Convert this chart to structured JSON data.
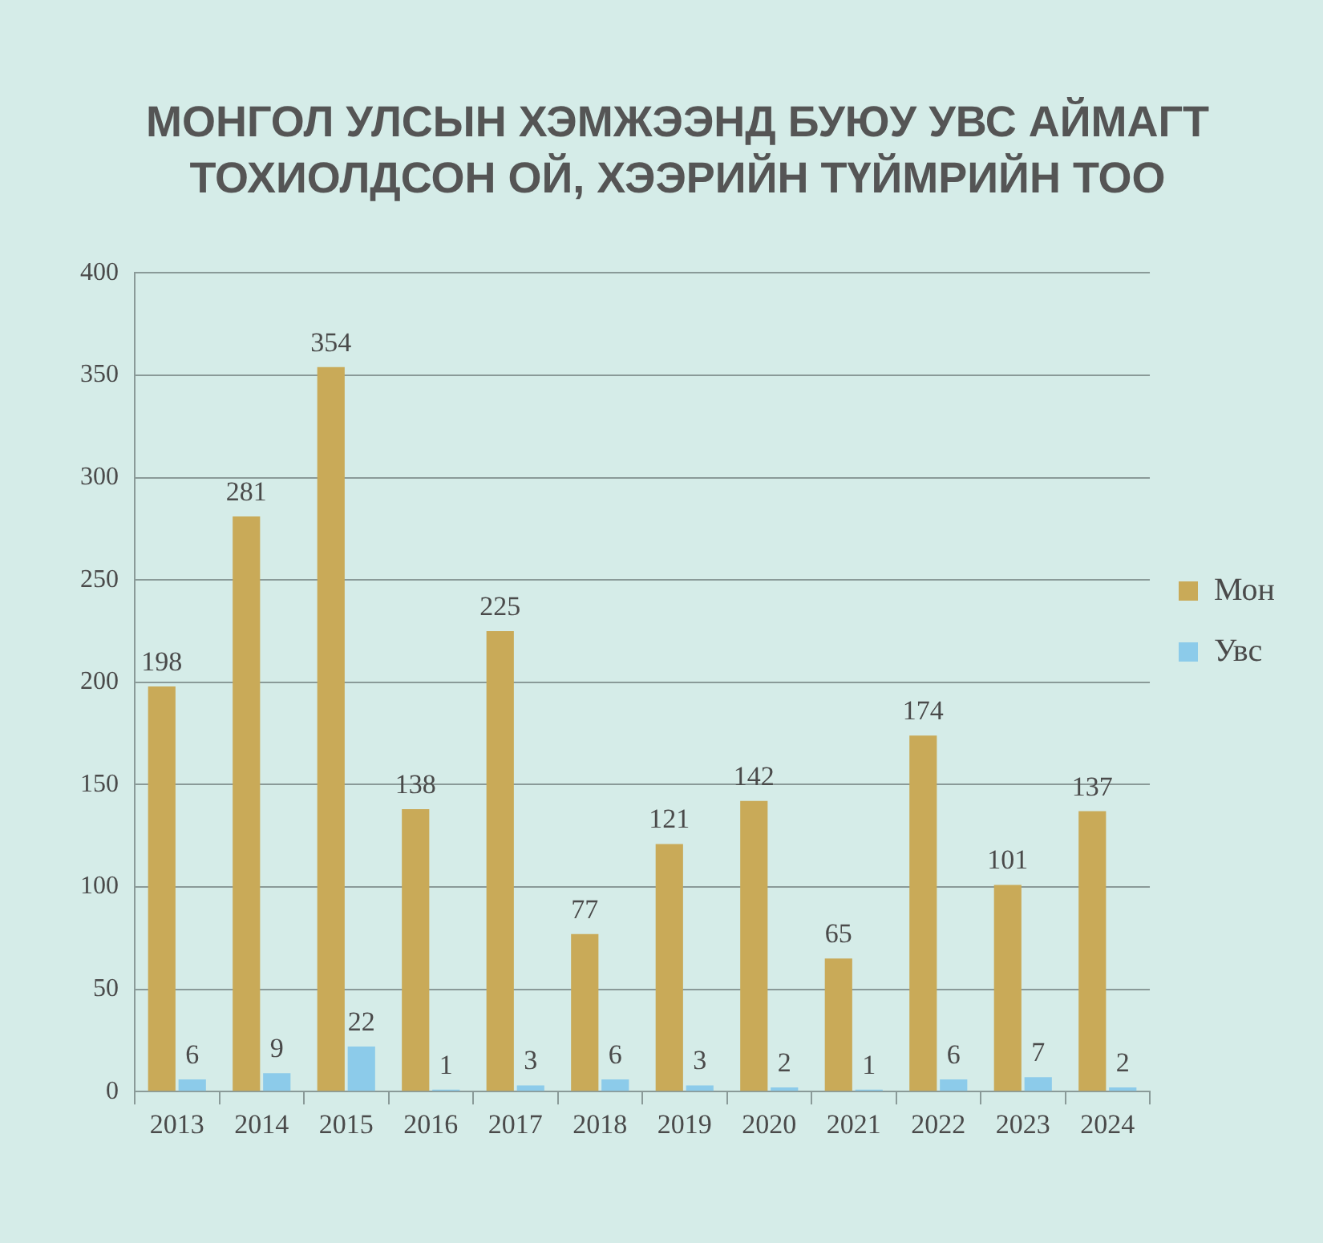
{
  "chart_data": {
    "type": "bar",
    "title": "МОНГОЛ УЛСЫН ХЭМЖЭЭНД БУЮУ УВС АЙМАГТ ТОХИОЛДСОН ОЙ, ХЭЭРИЙН ТҮЙМРИЙН ТОО",
    "categories": [
      "2013",
      "2014",
      "2015",
      "2016",
      "2017",
      "2018",
      "2019",
      "2020",
      "2021",
      "2022",
      "2023",
      "2024"
    ],
    "series": [
      {
        "name": "Мон",
        "color": "#c9aa58",
        "values": [
          198,
          281,
          354,
          138,
          225,
          77,
          121,
          142,
          65,
          174,
          101,
          137
        ]
      },
      {
        "name": "Увс",
        "color": "#8ccbea",
        "values": [
          6,
          9,
          22,
          1,
          3,
          6,
          3,
          2,
          1,
          6,
          7,
          2
        ]
      }
    ],
    "ylim": [
      0,
      400
    ],
    "yticks": [
      0,
      50,
      100,
      150,
      200,
      250,
      300,
      350,
      400
    ],
    "grid": "y",
    "legend": "right",
    "data_labels": true
  }
}
